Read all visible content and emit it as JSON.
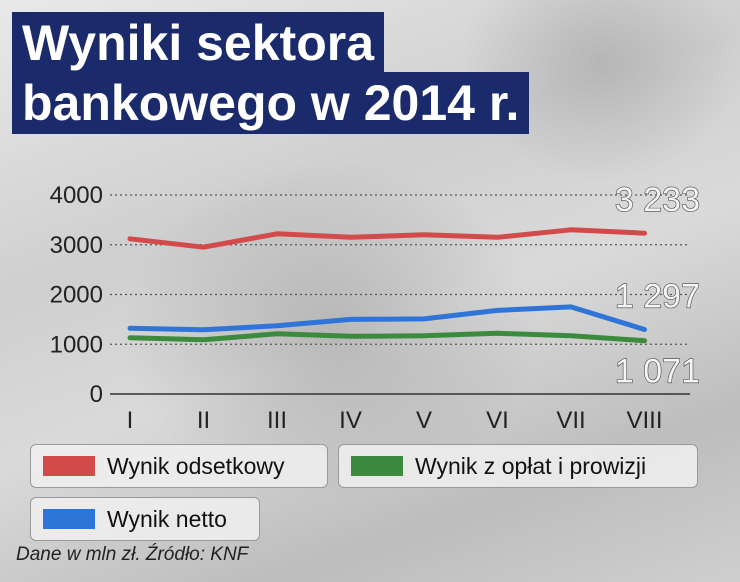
{
  "title_lines": [
    "Wyniki sektora",
    "bankowego w 2014 r."
  ],
  "source": "Dane w mln zł. Źródło: KNF",
  "colors": {
    "interest": "#d24a4a",
    "fees": "#3b8a3e",
    "net": "#2f74d8",
    "title_bg": "#1b2a6b"
  },
  "chart_data": {
    "type": "line",
    "title": "Wyniki sektora bankowego w 2014 r.",
    "categories": [
      "I",
      "II",
      "III",
      "IV",
      "V",
      "VI",
      "VII",
      "VIII"
    ],
    "y_ticks": [
      "0",
      "1000",
      "2000",
      "3000",
      "4000"
    ],
    "ylim": [
      0,
      4000
    ],
    "grid": "horizontal dotted",
    "unit": "Dane w mln zł",
    "series": [
      {
        "name": "Wynik odsetkowy",
        "color": "#d24a4a",
        "values": [
          3120,
          2950,
          3220,
          3150,
          3200,
          3150,
          3300,
          3233
        ],
        "end_label": "3 233"
      },
      {
        "name": "Wynik netto",
        "color": "#2f74d8",
        "values": [
          1320,
          1290,
          1370,
          1500,
          1510,
          1680,
          1750,
          1297
        ],
        "end_label": "1 297"
      },
      {
        "name": "Wynik z opłat i prowizji",
        "color": "#3b8a3e",
        "values": [
          1130,
          1090,
          1210,
          1160,
          1170,
          1220,
          1170,
          1071
        ],
        "end_label": "1 071"
      }
    ]
  },
  "legend": [
    {
      "label": "Wynik odsetkowy",
      "color": "#d24a4a"
    },
    {
      "label": "Wynik z opłat i prowizji",
      "color": "#3b8a3e"
    },
    {
      "label": "Wynik netto",
      "color": "#2f74d8"
    }
  ]
}
